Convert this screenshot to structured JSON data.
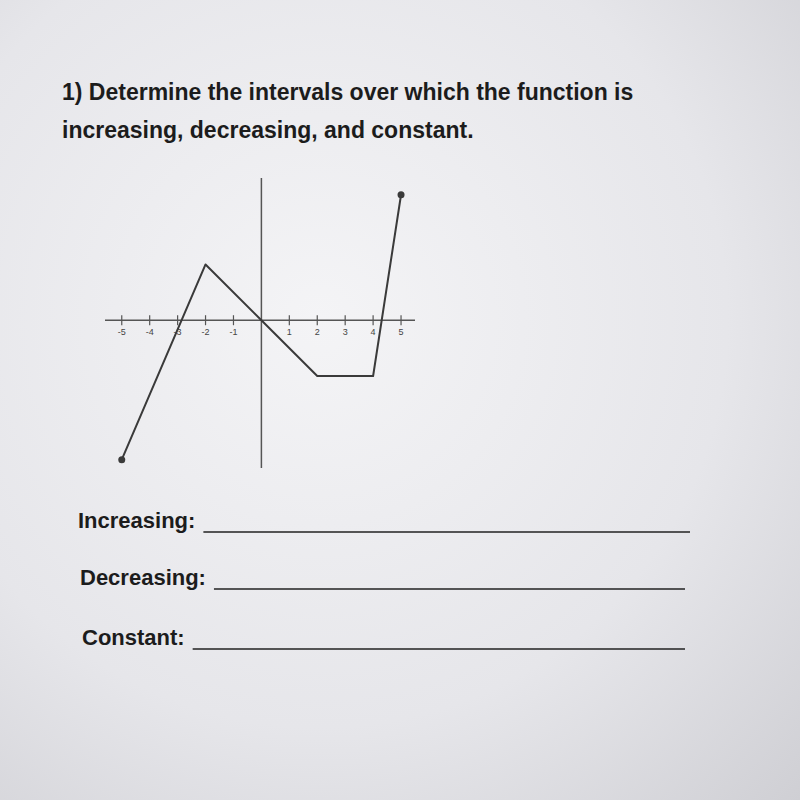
{
  "question": [
    "1) Determine the intervals over which the function is",
    "increasing, decreasing, and constant."
  ],
  "chart_data": {
    "type": "line",
    "x": [
      -5,
      -2,
      0,
      2,
      4,
      5
    ],
    "values": [
      -5,
      2,
      0,
      -2,
      -2,
      4.5
    ],
    "xlim": [
      -5.6,
      5.5
    ],
    "ylim": [
      -5.3,
      5.1
    ],
    "xticks": [
      -5,
      -4,
      -3,
      -2,
      -1,
      1,
      2,
      3,
      4,
      5
    ],
    "tick_labels": "x",
    "marker": "endpoint",
    "color": "#3a3a3a"
  },
  "answers": [
    "Increasing:",
    "Decreasing:",
    "Constant:"
  ]
}
